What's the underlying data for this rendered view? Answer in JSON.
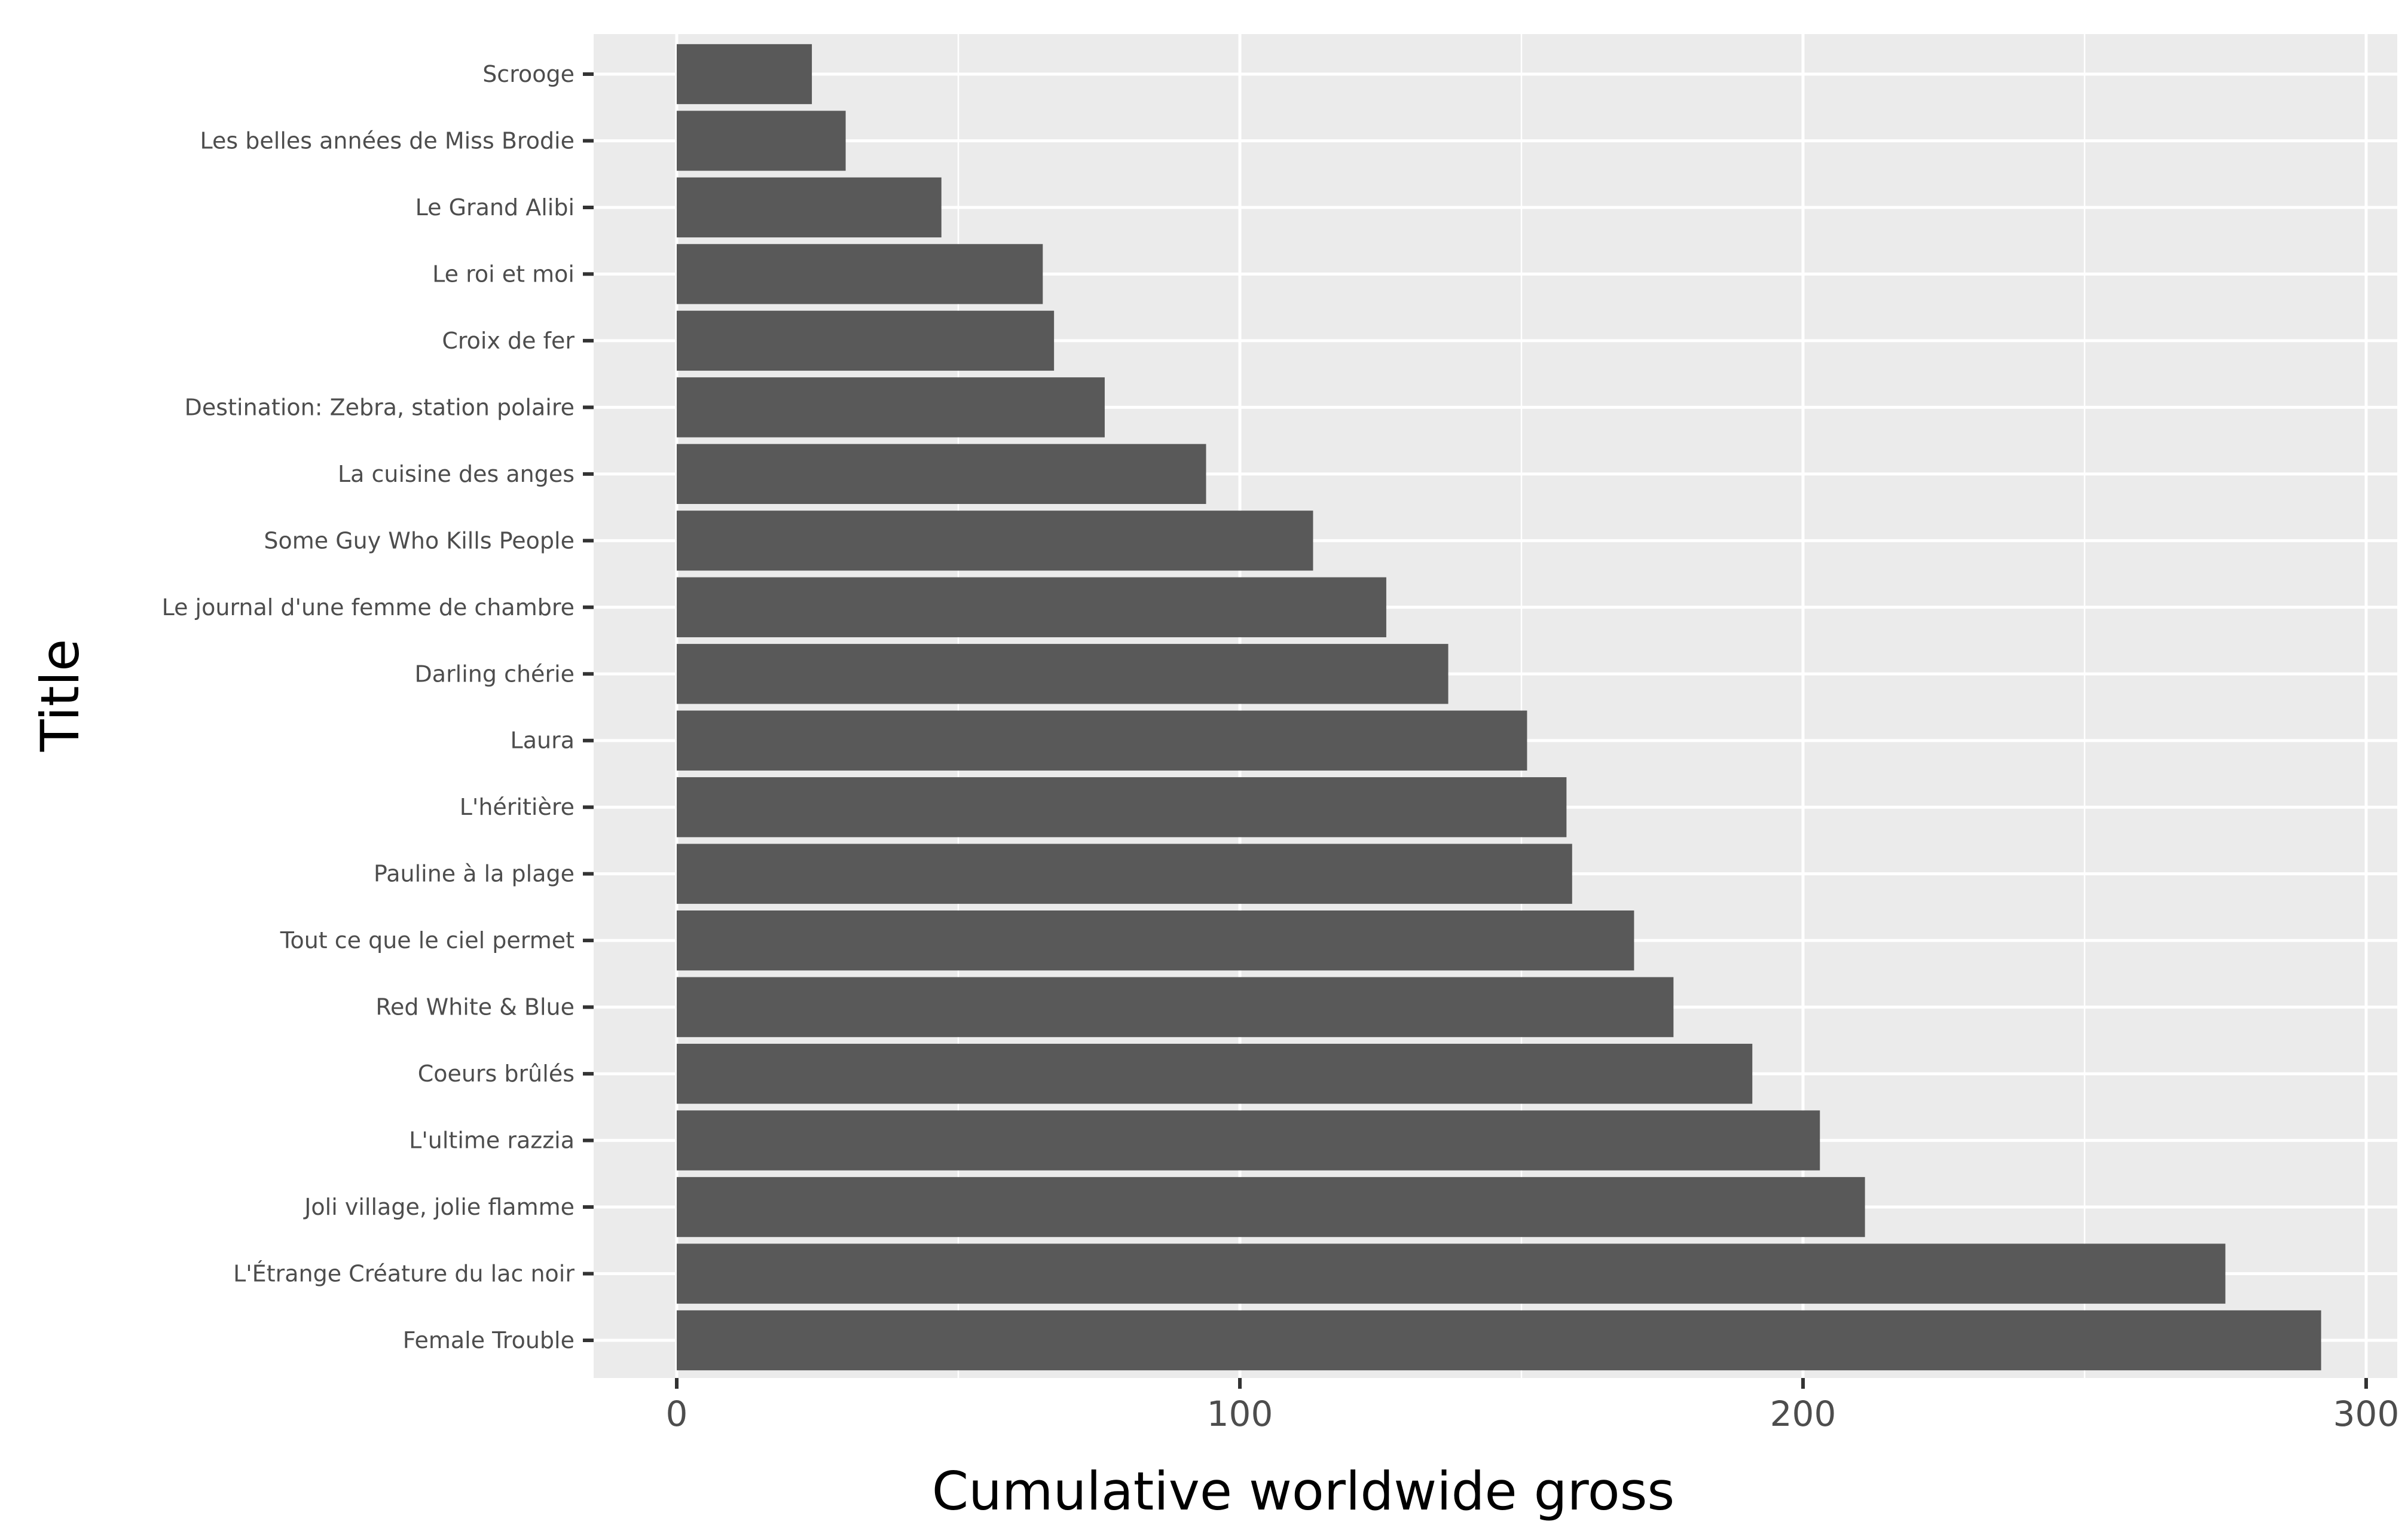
{
  "chart_data": {
    "type": "bar",
    "orientation": "horizontal",
    "xlabel": "Cumulative worldwide gross",
    "ylabel": "Title",
    "xlim": [
      -15,
      307
    ],
    "xticks": [
      0,
      100,
      200,
      300
    ],
    "xtick_labels": [
      "0",
      "100",
      "200",
      "300"
    ],
    "grid": true,
    "categories": [
      "Scrooge",
      "Les belles années de Miss Brodie",
      "Le Grand Alibi",
      "Le roi et moi",
      "Croix de fer",
      "Destination: Zebra, station polaire",
      "La cuisine des anges",
      "Some Guy Who Kills People",
      "Le journal d'une femme de chambre",
      "Darling chérie",
      "Laura",
      "L'héritière",
      "Pauline à la plage",
      "Tout ce que le ciel permet",
      "Red White & Blue",
      "Coeurs brûlés",
      "L'ultime razzia",
      "Joli village, jolie flamme",
      "L'Étrange Créature du lac noir",
      "Female Trouble"
    ],
    "values": [
      24,
      30,
      47,
      65,
      67,
      76,
      94,
      113,
      126,
      137,
      151,
      158,
      159,
      170,
      177,
      191,
      203,
      211,
      275,
      292
    ]
  },
  "colors": {
    "panel_background": "#ebebeb",
    "grid_major": "#ffffff",
    "bar_fill": "#595959",
    "tick_text": "#4d4d4d",
    "tick_mark": "#333333"
  }
}
